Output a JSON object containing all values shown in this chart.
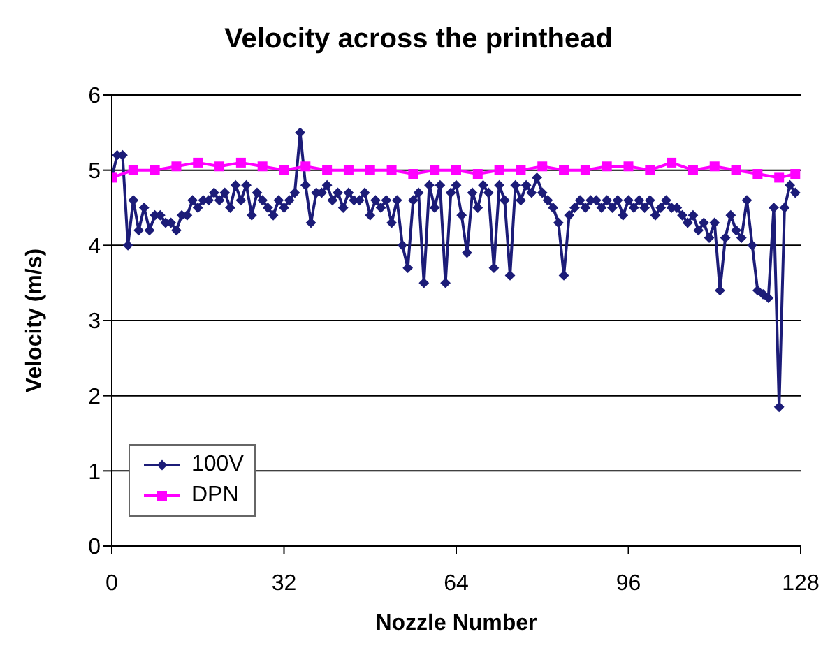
{
  "chart_data": {
    "type": "line",
    "title": "Velocity across the printhead",
    "xlabel": "Nozzle Number",
    "ylabel": "Velocity (m/s)",
    "xlim": [
      0,
      128
    ],
    "xticks": [
      0,
      32,
      64,
      96,
      128
    ],
    "ylim": [
      0,
      6
    ],
    "yticks": [
      0,
      1,
      2,
      3,
      4,
      5,
      6
    ],
    "grid": "y",
    "legend": "bottom left",
    "series": [
      {
        "name": "100V",
        "color": "#1c1c78",
        "marker": "diamond",
        "x": [
          0,
          1,
          2,
          3,
          4,
          5,
          6,
          7,
          8,
          9,
          10,
          11,
          12,
          13,
          14,
          15,
          16,
          17,
          18,
          19,
          20,
          21,
          22,
          23,
          24,
          25,
          26,
          27,
          28,
          29,
          30,
          31,
          32,
          33,
          34,
          35,
          36,
          37,
          38,
          39,
          40,
          41,
          42,
          43,
          44,
          45,
          46,
          47,
          48,
          49,
          50,
          51,
          52,
          53,
          54,
          55,
          56,
          57,
          58,
          59,
          60,
          61,
          62,
          63,
          64,
          65,
          66,
          67,
          68,
          69,
          70,
          71,
          72,
          73,
          74,
          75,
          76,
          77,
          78,
          79,
          80,
          81,
          82,
          83,
          84,
          85,
          86,
          87,
          88,
          89,
          90,
          91,
          92,
          93,
          94,
          95,
          96,
          97,
          98,
          99,
          100,
          101,
          102,
          103,
          104,
          105,
          106,
          107,
          108,
          109,
          110,
          111,
          112,
          113,
          114,
          115,
          116,
          117,
          118,
          119,
          120,
          121,
          122,
          123,
          124,
          125,
          126,
          127
        ],
        "values": [
          4.9,
          5.2,
          5.2,
          4.0,
          4.6,
          4.2,
          4.5,
          4.2,
          4.4,
          4.4,
          4.3,
          4.3,
          4.2,
          4.4,
          4.4,
          4.6,
          4.5,
          4.6,
          4.6,
          4.7,
          4.6,
          4.7,
          4.5,
          4.8,
          4.6,
          4.8,
          4.4,
          4.7,
          4.6,
          4.5,
          4.4,
          4.6,
          4.5,
          4.6,
          4.7,
          5.5,
          4.8,
          4.3,
          4.7,
          4.7,
          4.8,
          4.6,
          4.7,
          4.5,
          4.7,
          4.6,
          4.6,
          4.7,
          4.4,
          4.6,
          4.5,
          4.6,
          4.3,
          4.6,
          4.0,
          3.7,
          4.6,
          4.7,
          3.5,
          4.8,
          4.5,
          4.8,
          3.5,
          4.7,
          4.8,
          4.4,
          3.9,
          4.7,
          4.5,
          4.8,
          4.7,
          3.7,
          4.8,
          4.6,
          3.6,
          4.8,
          4.6,
          4.8,
          4.7,
          4.9,
          4.7,
          4.6,
          4.5,
          4.3,
          3.6,
          4.4,
          4.5,
          4.6,
          4.5,
          4.6,
          4.6,
          4.5,
          4.6,
          4.5,
          4.6,
          4.4,
          4.6,
          4.5,
          4.6,
          4.5,
          4.6,
          4.4,
          4.5,
          4.6,
          4.5,
          4.5,
          4.4,
          4.3,
          4.4,
          4.2,
          4.3,
          4.1,
          4.3,
          3.4,
          4.1,
          4.4,
          4.2,
          4.1,
          4.6,
          4.0,
          3.4,
          3.35,
          3.3,
          4.5,
          1.85,
          4.5,
          4.8,
          4.7
        ]
      },
      {
        "name": "DPN",
        "color": "#ff00ff",
        "marker": "square",
        "x": [
          0,
          4,
          8,
          12,
          16,
          20,
          24,
          28,
          32,
          36,
          40,
          44,
          48,
          52,
          56,
          60,
          64,
          68,
          72,
          76,
          80,
          84,
          88,
          92,
          96,
          100,
          104,
          108,
          112,
          116,
          120,
          124,
          127
        ],
        "values": [
          4.9,
          5.0,
          5.0,
          5.05,
          5.1,
          5.05,
          5.1,
          5.05,
          5.0,
          5.05,
          5.0,
          5.0,
          5.0,
          5.0,
          4.95,
          5.0,
          5.0,
          4.95,
          5.0,
          5.0,
          5.05,
          5.0,
          5.0,
          5.05,
          5.05,
          5.0,
          5.1,
          5.0,
          5.05,
          5.0,
          4.95,
          4.9,
          4.95
        ]
      }
    ]
  }
}
